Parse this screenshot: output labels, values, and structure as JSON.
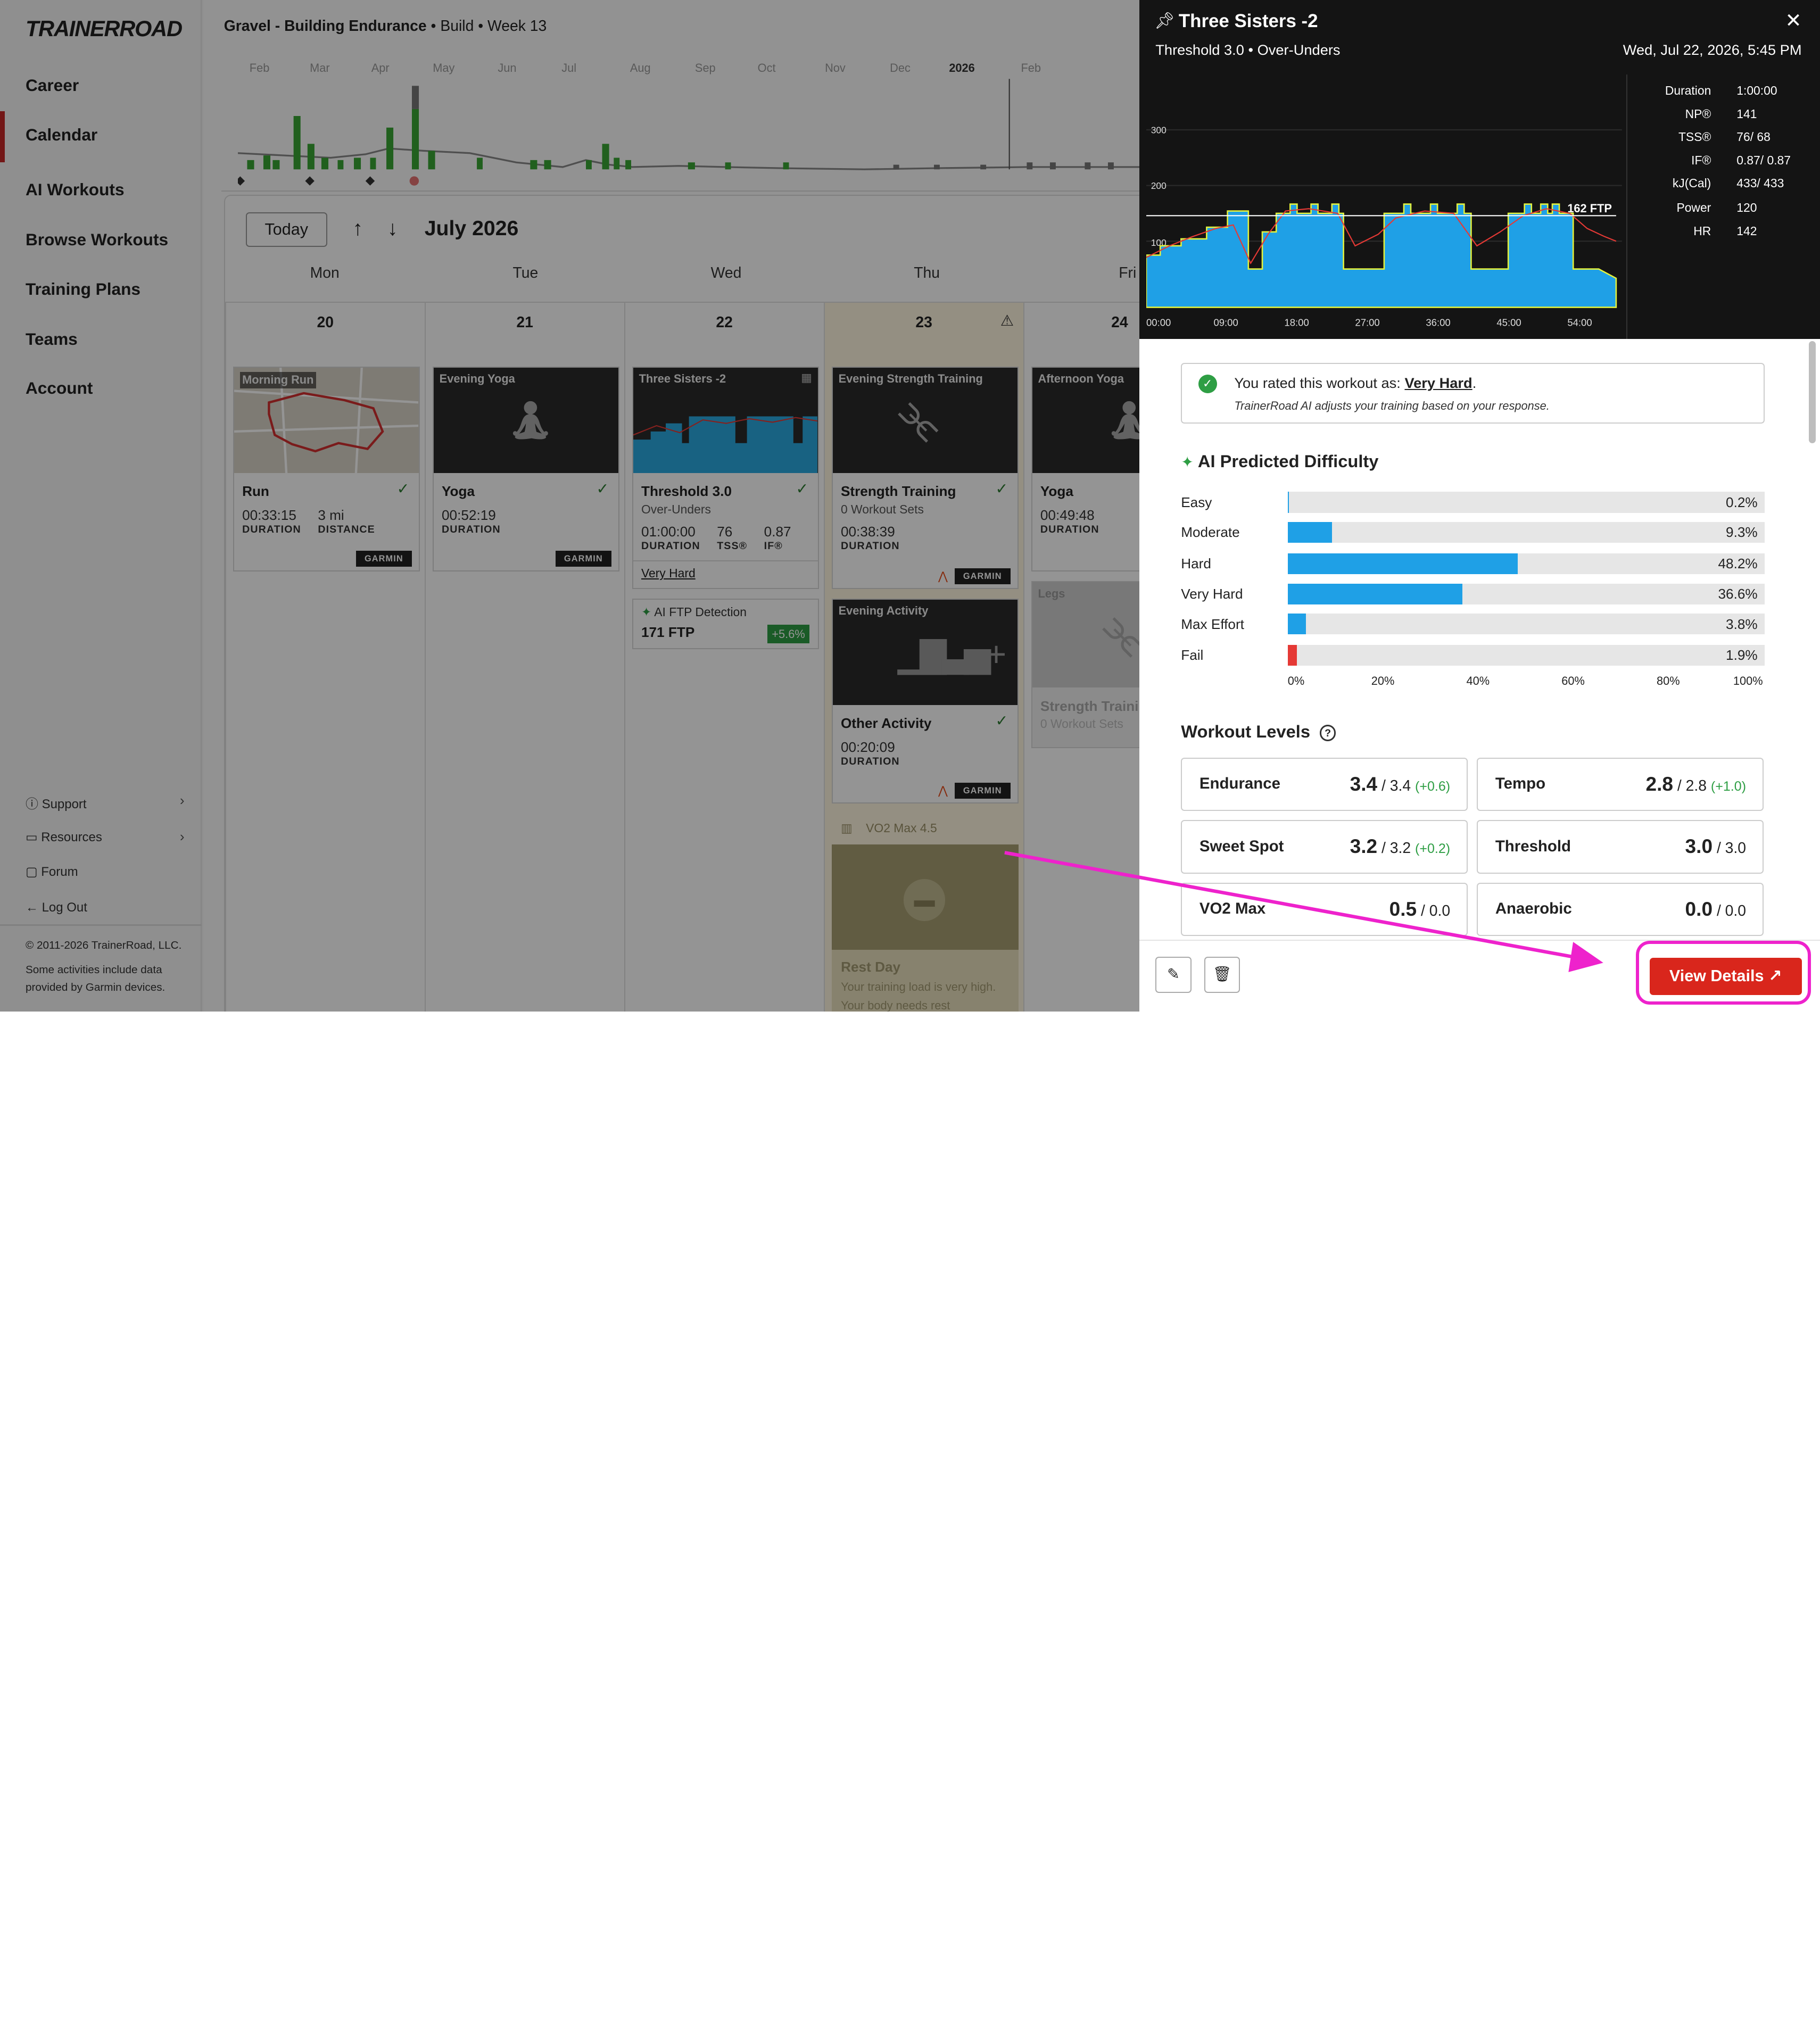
{
  "sidebar": {
    "logo": "TRAINERROAD",
    "nav": [
      "Career",
      "Calendar",
      "AI Workouts",
      "Browse Workouts",
      "Training Plans",
      "Teams",
      "Account"
    ],
    "footer_links": [
      "Support",
      "Resources",
      "Forum",
      "Log Out"
    ],
    "copyright": "© 2011-2026 TrainerRoad, LLC.",
    "garmin_note": "Some activities include data provided by Garmin devices."
  },
  "plan": {
    "name": "Gravel - Building Endurance",
    "phase": "Build",
    "week": "Week 13"
  },
  "timeline": {
    "months": [
      "Feb",
      "Mar",
      "Apr",
      "May",
      "Jun",
      "Jul",
      "Aug",
      "Sep",
      "Oct",
      "Nov",
      "Dec",
      "2026",
      "Feb"
    ]
  },
  "calendar": {
    "today_label": "Today",
    "up_arrow": "↑",
    "down_arrow": "↓",
    "month_label": "July 2026",
    "weekdays": [
      "Mon",
      "Tue",
      "Wed",
      "Thu",
      "Fri"
    ],
    "dates": [
      "20",
      "21",
      "22",
      "23",
      "24"
    ],
    "cards": {
      "mon": {
        "caption": "Morning Run",
        "title": "Run",
        "duration": "00:33:15",
        "duration_label": "DURATION",
        "distance": "3 mi",
        "distance_label": "DISTANCE",
        "garmin": "GARMIN"
      },
      "tue": {
        "caption": "Evening Yoga",
        "title": "Yoga",
        "duration": "00:52:19",
        "duration_label": "DURATION",
        "garmin": "GARMIN"
      },
      "wed": {
        "caption": "Three Sisters -2",
        "title": "Threshold 3.0",
        "subtitle": "Over-Unders",
        "duration": "01:00:00",
        "duration_label": "DURATION",
        "tss": "76",
        "tss_label": "TSS®",
        "if": "0.87",
        "if_label": "IF®",
        "rating": "Very Hard"
      },
      "wed_ftp": {
        "label": "AI FTP Detection",
        "value": "171 FTP",
        "change": "+5.6%"
      },
      "thu": {
        "caption": "Evening Strength Training",
        "title": "Strength Training",
        "subtitle": "0 Workout Sets",
        "duration": "00:38:39",
        "duration_label": "DURATION",
        "garmin": "GARMIN"
      },
      "thu2": {
        "caption": "Evening Activity",
        "title": "Other Activity",
        "duration": "00:20:09",
        "duration_label": "DURATION",
        "garmin": "GARMIN"
      },
      "thu3": {
        "caption": "VO2 Max 4.5",
        "title": "Rest Day",
        "subtitle": "Your training load is very high.",
        "subtitle2": "Your body needs rest"
      },
      "fri": {
        "caption": "Afternoon Yoga",
        "title": "Yoga",
        "duration": "00:49:48",
        "duration_label": "DURATION"
      },
      "fri2": {
        "caption": "Legs",
        "title": "Strength Traini",
        "subtitle": "0 Workout Sets"
      }
    }
  },
  "drawer": {
    "title": "Three Sisters -2",
    "subtitle": "Threshold 3.0 • Over-Unders",
    "datetime": "Wed, Jul 22, 2026, 5:45 PM",
    "close_icon": "close-icon",
    "graph": {
      "y_ticks": [
        "300",
        "200",
        "100"
      ],
      "x_ticks": [
        "00:00",
        "09:00",
        "18:00",
        "27:00",
        "36:00",
        "45:00",
        "54:00"
      ],
      "ftp_label": "162 FTP"
    },
    "metrics": [
      {
        "k": "Duration",
        "v": "1:00:00"
      },
      {
        "k": "NP®",
        "v": "141"
      },
      {
        "k": "TSS®",
        "v": "76/ 68"
      },
      {
        "k": "IF®",
        "v": "0.87/ 0.87"
      },
      {
        "k": "kJ(Cal)",
        "v": "433/ 433"
      },
      {
        "k": "Power",
        "v": "120"
      },
      {
        "k": "HR",
        "v": "142"
      }
    ],
    "rated": {
      "prefix": "You rated this workout as: ",
      "value": "Very Hard",
      "suffix": ".",
      "note": "TrainerRoad AI adjusts your training based on your response."
    },
    "difficulty": {
      "title": "AI Predicted Difficulty",
      "rows": [
        {
          "label": "Easy",
          "pct": "0.2%",
          "value": 0.2
        },
        {
          "label": "Moderate",
          "pct": "9.3%",
          "value": 9.3
        },
        {
          "label": "Hard",
          "pct": "48.2%",
          "value": 48.2
        },
        {
          "label": "Very Hard",
          "pct": "36.6%",
          "value": 36.6
        },
        {
          "label": "Max Effort",
          "pct": "3.8%",
          "value": 3.8
        },
        {
          "label": "Fail",
          "pct": "1.9%",
          "value": 1.9
        }
      ],
      "axis": [
        "0%",
        "20%",
        "40%",
        "60%",
        "80%",
        "100%"
      ]
    },
    "levels": {
      "title": "Workout Levels",
      "items": [
        {
          "name": "Endurance",
          "level": "3.4",
          "target": "/ 3.4",
          "change": "(+0.6)"
        },
        {
          "name": "Tempo",
          "level": "2.8",
          "target": "/ 2.8",
          "change": "(+1.0)"
        },
        {
          "name": "Sweet Spot",
          "level": "3.2",
          "target": "/ 3.2",
          "change": "(+0.2)"
        },
        {
          "name": "Threshold",
          "level": "3.0",
          "target": "/ 3.0",
          "change": ""
        },
        {
          "name": "VO2 Max",
          "level": "0.5",
          "target": "/ 0.0",
          "change": ""
        },
        {
          "name": "Anaerobic",
          "level": "0.0",
          "target": "/ 0.0",
          "change": ""
        }
      ]
    },
    "view_details": "View Details"
  },
  "colors": {
    "accent": "#d9261c",
    "bar": "#1fa0e6",
    "fail": "#e53935",
    "highlight": "#ee22cc",
    "success": "#2e9e44"
  }
}
